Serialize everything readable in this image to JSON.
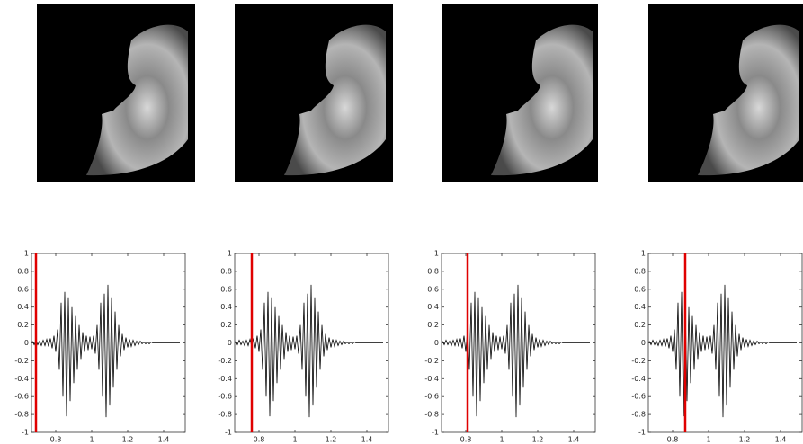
{
  "chart_data": [
    {
      "type": "line",
      "cursor_x": 0.69,
      "cursor_color": "#e00000",
      "xlim": [
        0.665,
        1.52
      ],
      "ylim": [
        -1,
        1
      ],
      "xticks": [
        0.8,
        1,
        1.2,
        1.4
      ],
      "yticks": [
        -1,
        -0.8,
        -0.6,
        -0.4,
        -0.2,
        0,
        0.2,
        0.4,
        0.6,
        0.8,
        1
      ],
      "x": [
        0.67,
        0.68,
        0.69,
        0.7,
        0.71,
        0.72,
        0.73,
        0.74,
        0.75,
        0.76,
        0.77,
        0.78,
        0.79,
        0.8,
        0.81,
        0.82,
        0.83,
        0.84,
        0.85,
        0.86,
        0.87,
        0.88,
        0.89,
        0.9,
        0.91,
        0.92,
        0.93,
        0.94,
        0.95,
        0.96,
        0.97,
        0.98,
        0.99,
        1.0,
        1.01,
        1.02,
        1.03,
        1.04,
        1.05,
        1.06,
        1.07,
        1.08,
        1.09,
        1.1,
        1.11,
        1.12,
        1.13,
        1.14,
        1.15,
        1.16,
        1.17,
        1.18,
        1.19,
        1.2,
        1.21,
        1.22,
        1.23,
        1.24,
        1.25,
        1.26,
        1.27,
        1.28,
        1.29,
        1.3,
        1.31,
        1.32,
        1.33,
        1.34,
        1.35,
        1.36,
        1.37,
        1.38,
        1.39,
        1.4,
        1.41,
        1.42,
        1.43,
        1.44,
        1.45,
        1.46,
        1.47,
        1.48,
        1.49
      ],
      "series": [
        {
          "color": "#000000",
          "values": [
            0.02,
            -0.02,
            0.03,
            -0.02,
            0.02,
            -0.03,
            0.03,
            -0.03,
            0.04,
            -0.04,
            0.05,
            -0.06,
            0.08,
            -0.1,
            0.15,
            -0.3,
            0.45,
            -0.6,
            0.57,
            -0.82,
            0.5,
            -0.65,
            0.4,
            -0.45,
            0.3,
            -0.3,
            0.2,
            -0.18,
            0.12,
            -0.1,
            0.08,
            -0.08,
            0.07,
            -0.07,
            0.08,
            -0.12,
            0.2,
            -0.3,
            0.45,
            -0.6,
            0.55,
            -0.83,
            0.65,
            -0.7,
            0.5,
            -0.5,
            0.35,
            -0.3,
            0.2,
            -0.15,
            0.1,
            -0.08,
            0.06,
            -0.05,
            0.04,
            -0.04,
            0.03,
            -0.03,
            0.02,
            -0.02,
            0.02,
            -0.01,
            0.01,
            -0.01,
            0.01,
            -0.01,
            0.01,
            0,
            0,
            0,
            0,
            0,
            0,
            0,
            0,
            0,
            0,
            0,
            0,
            0,
            0,
            0,
            0
          ]
        }
      ]
    },
    {
      "type": "line",
      "cursor_x": 0.76,
      "cursor_color": "#e00000",
      "xlim": [
        0.665,
        1.52
      ],
      "ylim": [
        -1,
        1
      ],
      "xticks": [
        0.8,
        1,
        1.2,
        1.4
      ],
      "yticks": [
        -1,
        -0.8,
        -0.6,
        -0.4,
        -0.2,
        0,
        0.2,
        0.4,
        0.6,
        0.8,
        1
      ],
      "x": [
        0.67,
        0.68,
        0.69,
        0.7,
        0.71,
        0.72,
        0.73,
        0.74,
        0.75,
        0.76,
        0.77,
        0.78,
        0.79,
        0.8,
        0.81,
        0.82,
        0.83,
        0.84,
        0.85,
        0.86,
        0.87,
        0.88,
        0.89,
        0.9,
        0.91,
        0.92,
        0.93,
        0.94,
        0.95,
        0.96,
        0.97,
        0.98,
        0.99,
        1.0,
        1.01,
        1.02,
        1.03,
        1.04,
        1.05,
        1.06,
        1.07,
        1.08,
        1.09,
        1.1,
        1.11,
        1.12,
        1.13,
        1.14,
        1.15,
        1.16,
        1.17,
        1.18,
        1.19,
        1.2,
        1.21,
        1.22,
        1.23,
        1.24,
        1.25,
        1.26,
        1.27,
        1.28,
        1.29,
        1.3,
        1.31,
        1.32,
        1.33,
        1.34,
        1.35,
        1.36,
        1.37,
        1.38,
        1.39,
        1.4,
        1.41,
        1.42,
        1.43,
        1.44,
        1.45,
        1.46,
        1.47,
        1.48,
        1.49
      ],
      "series": [
        {
          "color": "#000000",
          "values": [
            0.02,
            -0.02,
            0.03,
            -0.02,
            0.02,
            -0.03,
            0.03,
            -0.03,
            0.04,
            -0.04,
            0.05,
            -0.06,
            0.08,
            -0.1,
            0.15,
            -0.3,
            0.45,
            -0.6,
            0.57,
            -0.82,
            0.5,
            -0.65,
            0.4,
            -0.45,
            0.3,
            -0.3,
            0.2,
            -0.18,
            0.12,
            -0.1,
            0.08,
            -0.08,
            0.07,
            -0.07,
            0.08,
            -0.12,
            0.2,
            -0.3,
            0.45,
            -0.6,
            0.55,
            -0.83,
            0.65,
            -0.7,
            0.5,
            -0.5,
            0.35,
            -0.3,
            0.2,
            -0.15,
            0.1,
            -0.08,
            0.06,
            -0.05,
            0.04,
            -0.04,
            0.03,
            -0.03,
            0.02,
            -0.02,
            0.02,
            -0.01,
            0.01,
            -0.01,
            0.01,
            -0.01,
            0.01,
            0,
            0,
            0,
            0,
            0,
            0,
            0,
            0,
            0,
            0,
            0,
            0,
            0,
            0,
            0,
            0
          ]
        }
      ]
    },
    {
      "type": "line",
      "cursor_x": 0.81,
      "cursor_color": "#e00000",
      "xlim": [
        0.665,
        1.52
      ],
      "ylim": [
        -1,
        1
      ],
      "xticks": [
        0.8,
        1,
        1.2,
        1.4
      ],
      "yticks": [
        -1,
        -0.8,
        -0.6,
        -0.4,
        -0.2,
        0,
        0.2,
        0.4,
        0.6,
        0.8,
        1
      ],
      "x": [
        0.67,
        0.68,
        0.69,
        0.7,
        0.71,
        0.72,
        0.73,
        0.74,
        0.75,
        0.76,
        0.77,
        0.78,
        0.79,
        0.8,
        0.81,
        0.82,
        0.83,
        0.84,
        0.85,
        0.86,
        0.87,
        0.88,
        0.89,
        0.9,
        0.91,
        0.92,
        0.93,
        0.94,
        0.95,
        0.96,
        0.97,
        0.98,
        0.99,
        1.0,
        1.01,
        1.02,
        1.03,
        1.04,
        1.05,
        1.06,
        1.07,
        1.08,
        1.09,
        1.1,
        1.11,
        1.12,
        1.13,
        1.14,
        1.15,
        1.16,
        1.17,
        1.18,
        1.19,
        1.2,
        1.21,
        1.22,
        1.23,
        1.24,
        1.25,
        1.26,
        1.27,
        1.28,
        1.29,
        1.3,
        1.31,
        1.32,
        1.33,
        1.34,
        1.35,
        1.36,
        1.37,
        1.38,
        1.39,
        1.4,
        1.41,
        1.42,
        1.43,
        1.44,
        1.45,
        1.46,
        1.47,
        1.48,
        1.49
      ],
      "series": [
        {
          "color": "#000000",
          "values": [
            0.02,
            -0.02,
            0.03,
            -0.02,
            0.02,
            -0.03,
            0.03,
            -0.03,
            0.04,
            -0.04,
            0.05,
            -0.06,
            0.08,
            -0.1,
            0.15,
            -0.3,
            0.45,
            -0.6,
            0.57,
            -0.82,
            0.5,
            -0.65,
            0.4,
            -0.45,
            0.3,
            -0.3,
            0.2,
            -0.18,
            0.12,
            -0.1,
            0.08,
            -0.08,
            0.07,
            -0.07,
            0.08,
            -0.12,
            0.2,
            -0.3,
            0.45,
            -0.6,
            0.55,
            -0.83,
            0.65,
            -0.7,
            0.5,
            -0.5,
            0.35,
            -0.3,
            0.2,
            -0.15,
            0.1,
            -0.08,
            0.06,
            -0.05,
            0.04,
            -0.04,
            0.03,
            -0.03,
            0.02,
            -0.02,
            0.02,
            -0.01,
            0.01,
            -0.01,
            0.01,
            -0.01,
            0.01,
            0,
            0,
            0,
            0,
            0,
            0,
            0,
            0,
            0,
            0,
            0,
            0,
            0,
            0,
            0,
            0
          ]
        }
      ]
    },
    {
      "type": "line",
      "cursor_x": 0.87,
      "cursor_color": "#e00000",
      "xlim": [
        0.665,
        1.52
      ],
      "ylim": [
        -1,
        1
      ],
      "xticks": [
        0.8,
        1,
        1.2,
        1.4
      ],
      "yticks": [
        -1,
        -0.8,
        -0.6,
        -0.4,
        -0.2,
        0,
        0.2,
        0.4,
        0.6,
        0.8,
        1
      ],
      "x": [
        0.67,
        0.68,
        0.69,
        0.7,
        0.71,
        0.72,
        0.73,
        0.74,
        0.75,
        0.76,
        0.77,
        0.78,
        0.79,
        0.8,
        0.81,
        0.82,
        0.83,
        0.84,
        0.85,
        0.86,
        0.87,
        0.88,
        0.89,
        0.9,
        0.91,
        0.92,
        0.93,
        0.94,
        0.95,
        0.96,
        0.97,
        0.98,
        0.99,
        1.0,
        1.01,
        1.02,
        1.03,
        1.04,
        1.05,
        1.06,
        1.07,
        1.08,
        1.09,
        1.1,
        1.11,
        1.12,
        1.13,
        1.14,
        1.15,
        1.16,
        1.17,
        1.18,
        1.19,
        1.2,
        1.21,
        1.22,
        1.23,
        1.24,
        1.25,
        1.26,
        1.27,
        1.28,
        1.29,
        1.3,
        1.31,
        1.32,
        1.33,
        1.34,
        1.35,
        1.36,
        1.37,
        1.38,
        1.39,
        1.4,
        1.41,
        1.42,
        1.43,
        1.44,
        1.45,
        1.46,
        1.47,
        1.48,
        1.49
      ],
      "series": [
        {
          "color": "#000000",
          "values": [
            0.02,
            -0.02,
            0.03,
            -0.02,
            0.02,
            -0.03,
            0.03,
            -0.03,
            0.04,
            -0.04,
            0.05,
            -0.06,
            0.08,
            -0.1,
            0.15,
            -0.3,
            0.45,
            -0.6,
            0.57,
            -0.82,
            0.5,
            -0.65,
            0.4,
            -0.45,
            0.3,
            -0.3,
            0.2,
            -0.18,
            0.12,
            -0.1,
            0.08,
            -0.08,
            0.07,
            -0.07,
            0.08,
            -0.12,
            0.2,
            -0.3,
            0.45,
            -0.6,
            0.55,
            -0.83,
            0.65,
            -0.7,
            0.5,
            -0.5,
            0.35,
            -0.3,
            0.2,
            -0.15,
            0.1,
            -0.08,
            0.06,
            -0.05,
            0.04,
            -0.04,
            0.03,
            -0.03,
            0.02,
            -0.02,
            0.02,
            -0.01,
            0.01,
            -0.01,
            0.01,
            -0.01,
            0.01,
            0,
            0,
            0,
            0,
            0,
            0,
            0,
            0,
            0,
            0,
            0,
            0,
            0,
            0,
            0,
            0
          ]
        }
      ]
    }
  ]
}
